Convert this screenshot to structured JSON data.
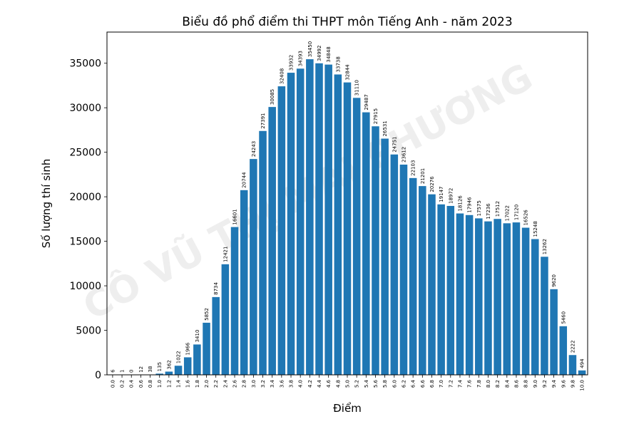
{
  "chart_data": {
    "type": "bar",
    "title": "Biểu đồ phổ điểm thi THPT môn Tiếng Anh - năm 2023",
    "xlabel": "Điểm",
    "ylabel": "Số lượng thí sinh",
    "watermark": "CÔ VŨ THỊ MAI PHƯƠNG",
    "ylim": [
      0,
      38500
    ],
    "yticks": [
      0,
      5000,
      10000,
      15000,
      20000,
      25000,
      30000,
      35000
    ],
    "ytick_labels": [
      "0",
      "5000",
      "10000",
      "15000",
      "20000",
      "25000",
      "30000",
      "35000"
    ],
    "bar_color": "#1f77b4",
    "grid": false,
    "categories": [
      "0.0",
      "0.2",
      "0.4",
      "0.6",
      "0.8",
      "1.0",
      "1.2",
      "1.4",
      "1.6",
      "1.8",
      "2.0",
      "2.2",
      "2.4",
      "2.6",
      "2.8",
      "3.0",
      "3.2",
      "3.4",
      "3.6",
      "3.8",
      "4.0",
      "4.2",
      "4.4",
      "4.6",
      "4.8",
      "5.0",
      "5.2",
      "5.4",
      "5.6",
      "5.8",
      "6.0",
      "6.2",
      "6.4",
      "6.6",
      "6.8",
      "7.0",
      "7.2",
      "7.4",
      "7.6",
      "7.8",
      "8.0",
      "8.2",
      "8.4",
      "8.6",
      "8.8",
      "9.0",
      "9.2",
      "9.4",
      "9.6",
      "9.8",
      "10.0"
    ],
    "values": [
      6,
      1,
      0,
      12,
      38,
      135,
      362,
      1022,
      1966,
      3410,
      5852,
      8734,
      12421,
      16601,
      20744,
      24243,
      27391,
      30085,
      32408,
      33932,
      34393,
      35450,
      34992,
      34848,
      33738,
      32844,
      31110,
      29487,
      27915,
      26531,
      24751,
      23612,
      22103,
      21201,
      20276,
      19147,
      18972,
      18126,
      17946,
      17575,
      17236,
      17512,
      17022,
      17120,
      16526,
      15248,
      13262,
      9620,
      5460,
      2222,
      494
    ]
  }
}
